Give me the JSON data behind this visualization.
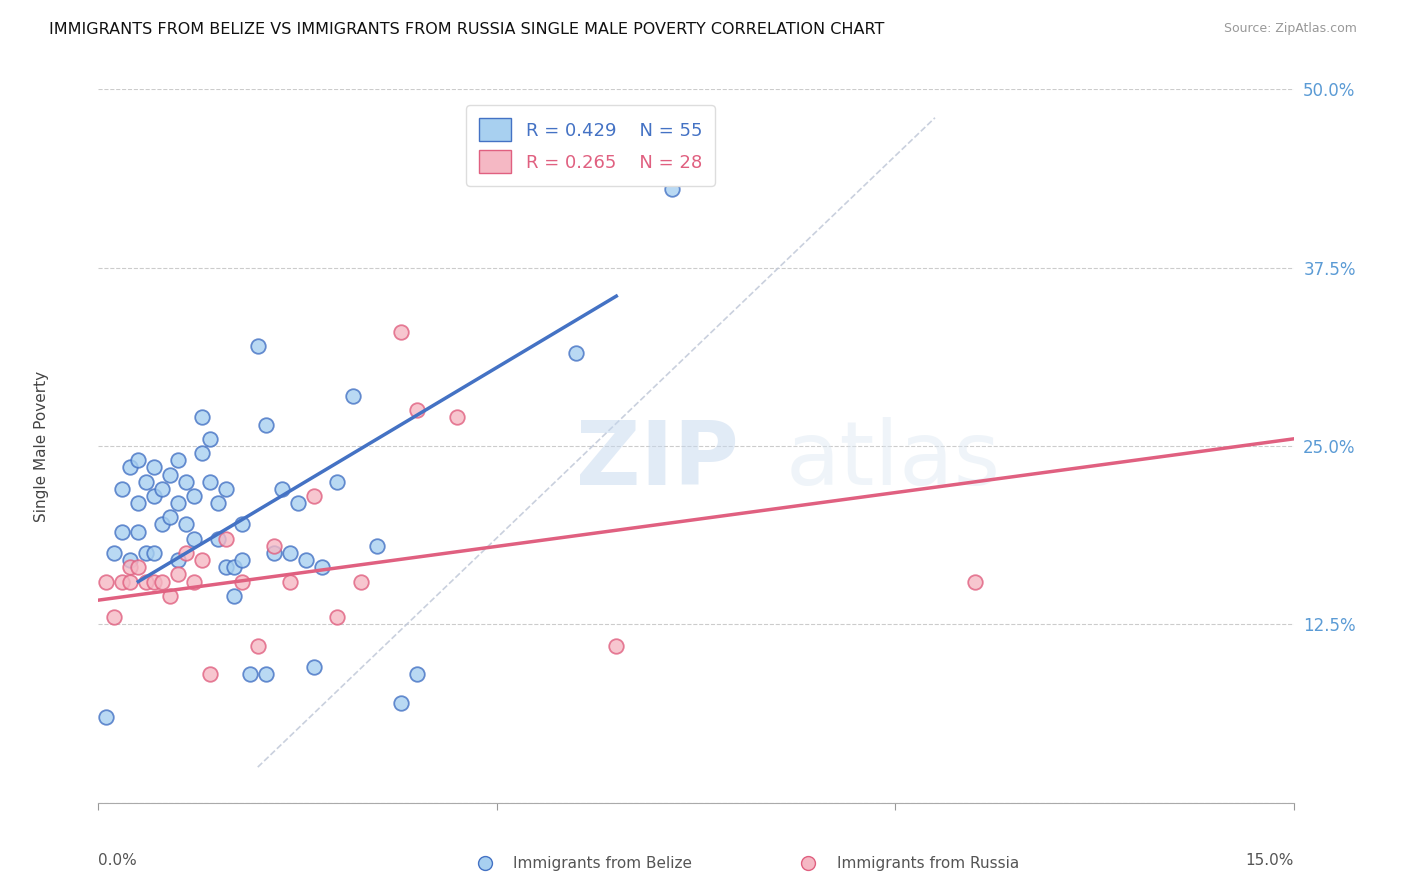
{
  "title": "IMMIGRANTS FROM BELIZE VS IMMIGRANTS FROM RUSSIA SINGLE MALE POVERTY CORRELATION CHART",
  "source": "Source: ZipAtlas.com",
  "ylabel": "Single Male Poverty",
  "yticks": [
    0.0,
    0.125,
    0.25,
    0.375,
    0.5
  ],
  "ytick_labels": [
    "",
    "12.5%",
    "25.0%",
    "37.5%",
    "50.0%"
  ],
  "xlim": [
    0.0,
    0.15
  ],
  "ylim": [
    0.0,
    0.5
  ],
  "legend_r1": "R = 0.429",
  "legend_n1": "N = 55",
  "legend_r2": "R = 0.265",
  "legend_n2": "N = 28",
  "label1": "Immigrants from Belize",
  "label2": "Immigrants from Russia",
  "color_blue": "#a8d0f0",
  "color_pink": "#f5b8c4",
  "color_blue_dark": "#4472c4",
  "color_pink_dark": "#e06080",
  "color_diag_line": "#c0c8d8",
  "color_axis_right": "#5b9bd5",
  "color_legend_text_blue": "#4472c4",
  "color_legend_text_pink": "#e06080",
  "watermark_zip": "ZIP",
  "watermark_atlas": "atlas",
  "belize_x": [
    0.001,
    0.002,
    0.003,
    0.003,
    0.004,
    0.004,
    0.005,
    0.005,
    0.005,
    0.006,
    0.006,
    0.007,
    0.007,
    0.007,
    0.008,
    0.008,
    0.009,
    0.009,
    0.01,
    0.01,
    0.01,
    0.011,
    0.011,
    0.012,
    0.012,
    0.013,
    0.013,
    0.014,
    0.014,
    0.015,
    0.015,
    0.016,
    0.016,
    0.017,
    0.017,
    0.018,
    0.018,
    0.019,
    0.02,
    0.021,
    0.021,
    0.022,
    0.023,
    0.024,
    0.025,
    0.026,
    0.027,
    0.028,
    0.03,
    0.032,
    0.035,
    0.038,
    0.04,
    0.06,
    0.072
  ],
  "belize_y": [
    0.06,
    0.175,
    0.22,
    0.19,
    0.235,
    0.17,
    0.21,
    0.24,
    0.19,
    0.225,
    0.175,
    0.235,
    0.215,
    0.175,
    0.22,
    0.195,
    0.23,
    0.2,
    0.24,
    0.21,
    0.17,
    0.225,
    0.195,
    0.185,
    0.215,
    0.27,
    0.245,
    0.255,
    0.225,
    0.21,
    0.185,
    0.165,
    0.22,
    0.165,
    0.145,
    0.195,
    0.17,
    0.09,
    0.32,
    0.265,
    0.09,
    0.175,
    0.22,
    0.175,
    0.21,
    0.17,
    0.095,
    0.165,
    0.225,
    0.285,
    0.18,
    0.07,
    0.09,
    0.315,
    0.43
  ],
  "russia_x": [
    0.001,
    0.002,
    0.003,
    0.004,
    0.004,
    0.005,
    0.006,
    0.007,
    0.008,
    0.009,
    0.01,
    0.011,
    0.012,
    0.013,
    0.014,
    0.016,
    0.018,
    0.02,
    0.022,
    0.024,
    0.027,
    0.03,
    0.033,
    0.038,
    0.04,
    0.045,
    0.065,
    0.11
  ],
  "russia_y": [
    0.155,
    0.13,
    0.155,
    0.165,
    0.155,
    0.165,
    0.155,
    0.155,
    0.155,
    0.145,
    0.16,
    0.175,
    0.155,
    0.17,
    0.09,
    0.185,
    0.155,
    0.11,
    0.18,
    0.155,
    0.215,
    0.13,
    0.155,
    0.33,
    0.275,
    0.27,
    0.11,
    0.155
  ],
  "belize_line_x": [
    0.005,
    0.065
  ],
  "belize_line_y": [
    0.155,
    0.355
  ],
  "russia_line_x": [
    0.0,
    0.15
  ],
  "russia_line_y": [
    0.142,
    0.255
  ],
  "diag_line_x": [
    0.02,
    0.105
  ],
  "diag_line_y": [
    0.025,
    0.48
  ]
}
